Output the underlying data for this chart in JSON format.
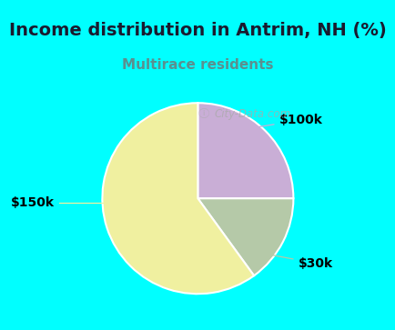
{
  "title": "Income distribution in Antrim, NH (%)",
  "subtitle": "Multirace residents",
  "slices": [
    {
      "label": "$100k",
      "value": 25,
      "color": "#c9aed6"
    },
    {
      "label": "$30k",
      "value": 15,
      "color": "#b5c9a8"
    },
    {
      "label": "$150k",
      "value": 60,
      "color": "#f0f0a0"
    }
  ],
  "title_fontsize": 14,
  "title_color": "#1a1a2e",
  "subtitle_fontsize": 11,
  "subtitle_color": "#5a9090",
  "bg_cyan": "#00ffff",
  "bg_panel_color": "#d8f0e8",
  "startangle": 90,
  "label_fontsize": 10,
  "watermark": "City-Data.com",
  "watermark_color": "#aaaaaa"
}
